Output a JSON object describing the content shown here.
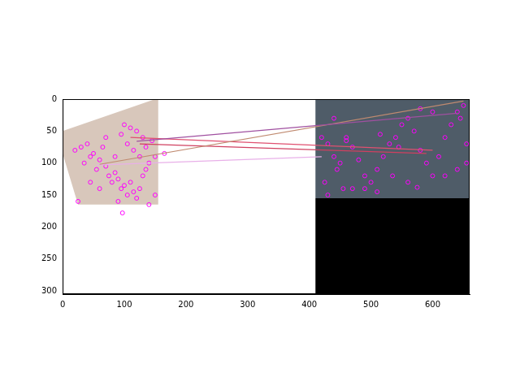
{
  "chart_data": {
    "type": "scatter",
    "xlim": [
      0,
      660
    ],
    "ylim": [
      305,
      0
    ],
    "xticks": [
      0,
      100,
      200,
      300,
      400,
      500,
      600
    ],
    "yticks": [
      0,
      50,
      100,
      150,
      200,
      250,
      300
    ],
    "grid": false,
    "series": [
      {
        "type": "area",
        "color": "#d8c7bb",
        "x": [
          0,
          150,
          155,
          155,
          25,
          0,
          0
        ],
        "values": [
          50,
          0,
          0,
          165,
          165,
          85,
          50
        ]
      },
      {
        "type": "area",
        "color": "#4f5c68",
        "x": [
          410,
          660,
          660,
          410,
          410
        ],
        "values": [
          0,
          0,
          155,
          155,
          0
        ]
      },
      {
        "type": "area",
        "color": "#000000",
        "x": [
          410,
          660,
          660,
          410,
          410
        ],
        "values": [
          155,
          155,
          305,
          305,
          155
        ]
      },
      {
        "type": "scatter",
        "marker": "circle",
        "color": "#ff00ff",
        "x": [
          25,
          20,
          30,
          40,
          45,
          50,
          35,
          55,
          60,
          70,
          75,
          80,
          85,
          90,
          95,
          100,
          105,
          110,
          115,
          120,
          125,
          130,
          135,
          140,
          130,
          120,
          110,
          100,
          95,
          105,
          115,
          125,
          135,
          145,
          150,
          140,
          97,
          90,
          85,
          65,
          70,
          165,
          150,
          60,
          45,
          420,
          430,
          440,
          445,
          450,
          460,
          470,
          480,
          490,
          500,
          510,
          520,
          530,
          540,
          550,
          560,
          570,
          580,
          590,
          600,
          610,
          620,
          630,
          640,
          650,
          645,
          655,
          600,
          580,
          470,
          490,
          510,
          455,
          430,
          460,
          440,
          425,
          535,
          560,
          575,
          620,
          640,
          655,
          545,
          515
        ],
        "values": [
          160,
          80,
          75,
          70,
          90,
          85,
          100,
          110,
          95,
          105,
          120,
          130,
          115,
          125,
          140,
          135,
          150,
          130,
          145,
          155,
          140,
          120,
          110,
          100,
          60,
          50,
          45,
          40,
          55,
          70,
          80,
          90,
          75,
          65,
          150,
          165,
          178,
          160,
          90,
          75,
          60,
          85,
          90,
          140,
          130,
          60,
          70,
          90,
          110,
          100,
          65,
          75,
          95,
          120,
          130,
          110,
          90,
          70,
          60,
          40,
          30,
          50,
          80,
          100,
          120,
          90,
          60,
          40,
          20,
          10,
          30,
          70,
          20,
          15,
          140,
          140,
          145,
          140,
          150,
          60,
          30,
          130,
          120,
          130,
          138,
          120,
          110,
          100,
          75,
          55
        ]
      },
      {
        "type": "line",
        "color": "#a050a0",
        "x": [
          120,
          640
        ],
        "values": [
          66,
          22
        ]
      },
      {
        "type": "line",
        "color": "#c08a70",
        "x": [
          60,
          650
        ],
        "values": [
          102,
          3
        ]
      },
      {
        "type": "line",
        "color": "#e05070",
        "x": [
          110,
          600
        ],
        "values": [
          60,
          80
        ]
      },
      {
        "type": "line",
        "color": "#d04060",
        "x": [
          125,
          590
        ],
        "values": [
          70,
          85
        ]
      },
      {
        "type": "line",
        "color": "#e8b0e8",
        "x": [
          55,
          420
        ],
        "values": [
          103,
          90
        ]
      }
    ]
  }
}
